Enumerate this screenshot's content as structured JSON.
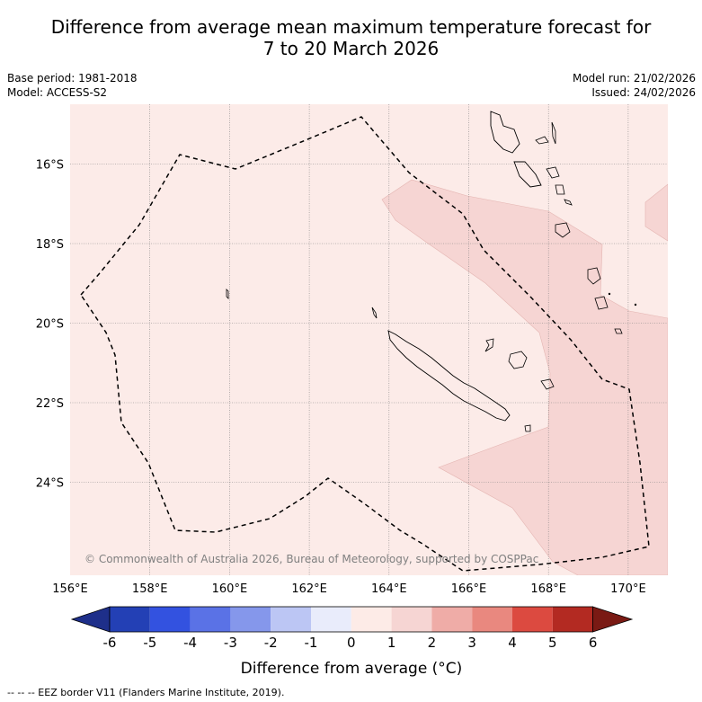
{
  "title_line1": "Difference from average mean maximum temperature forecast for",
  "title_line2": "7 to 20 March 2026",
  "base_period": "Base period: 1981-2018",
  "model": "Model: ACCESS-S2",
  "model_run": "Model run: 21/02/2026",
  "issued": "Issued: 24/02/2026",
  "copyright": "© Commonwealth of Australia 2026, Bureau of Meteorology, supported by COSPPac",
  "footer_legend": "--  --  -- EEZ border V11 (Flanders Marine Institute, 2019).",
  "map": {
    "lon_labels": [
      "156°E",
      "158°E",
      "160°E",
      "162°E",
      "164°E",
      "166°E",
      "168°E",
      "170°E"
    ],
    "lat_labels": [
      "16°S",
      "18°S",
      "20°S",
      "22°S",
      "24°S"
    ],
    "background_class": "0 to 1",
    "highlight_class": "1 to 2"
  },
  "colorbar": {
    "title": "Difference from average (°C)",
    "tick_labels": [
      "-6",
      "-5",
      "-4",
      "-3",
      "-2",
      "-1",
      "0",
      "1",
      "2",
      "3",
      "4",
      "5",
      "6"
    ],
    "colors": [
      "#1e2f8a",
      "#2340b5",
      "#3352e0",
      "#5a72e6",
      "#8597eb",
      "#bcc6f4",
      "#e9ecfb",
      "#fdebe7",
      "#f6d5d3",
      "#efaca7",
      "#e9887f",
      "#dc4a40",
      "#b32a22",
      "#7a1a14"
    ]
  }
}
